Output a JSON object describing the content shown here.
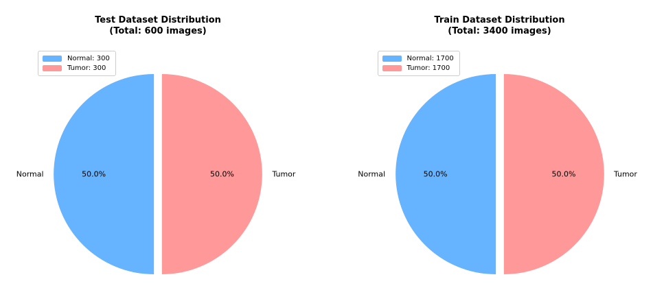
{
  "figure": {
    "background": "#ffffff",
    "text_color": "#000000",
    "legend_border_color": "#cccccc"
  },
  "chart_data": [
    {
      "type": "pie",
      "title_line1": "Test Dataset Distribution",
      "title_line2": "(Total: 600 images)",
      "categories": [
        "Normal",
        "Tumor"
      ],
      "values": [
        300,
        300
      ],
      "total": 600,
      "percent_labels": [
        "50.0%",
        "50.0%"
      ],
      "legend_entries": [
        "Normal: 300",
        "Tumor: 300"
      ],
      "legend_position": "upper left",
      "colors": [
        "#66b3ff",
        "#ff9999"
      ],
      "start_angle": 90,
      "explode": [
        0.04,
        0.04
      ],
      "pct_distance": 0.6,
      "label_distance": 1.1
    },
    {
      "type": "pie",
      "title_line1": "Train Dataset Distribution",
      "title_line2": "(Total: 3400 images)",
      "categories": [
        "Normal",
        "Tumor"
      ],
      "values": [
        1700,
        1700
      ],
      "total": 3400,
      "percent_labels": [
        "50.0%",
        "50.0%"
      ],
      "legend_entries": [
        "Normal: 1700",
        "Tumor: 1700"
      ],
      "legend_position": "upper left",
      "colors": [
        "#66b3ff",
        "#ff9999"
      ],
      "start_angle": 90,
      "explode": [
        0.04,
        0.04
      ],
      "pct_distance": 0.6,
      "label_distance": 1.1
    }
  ]
}
